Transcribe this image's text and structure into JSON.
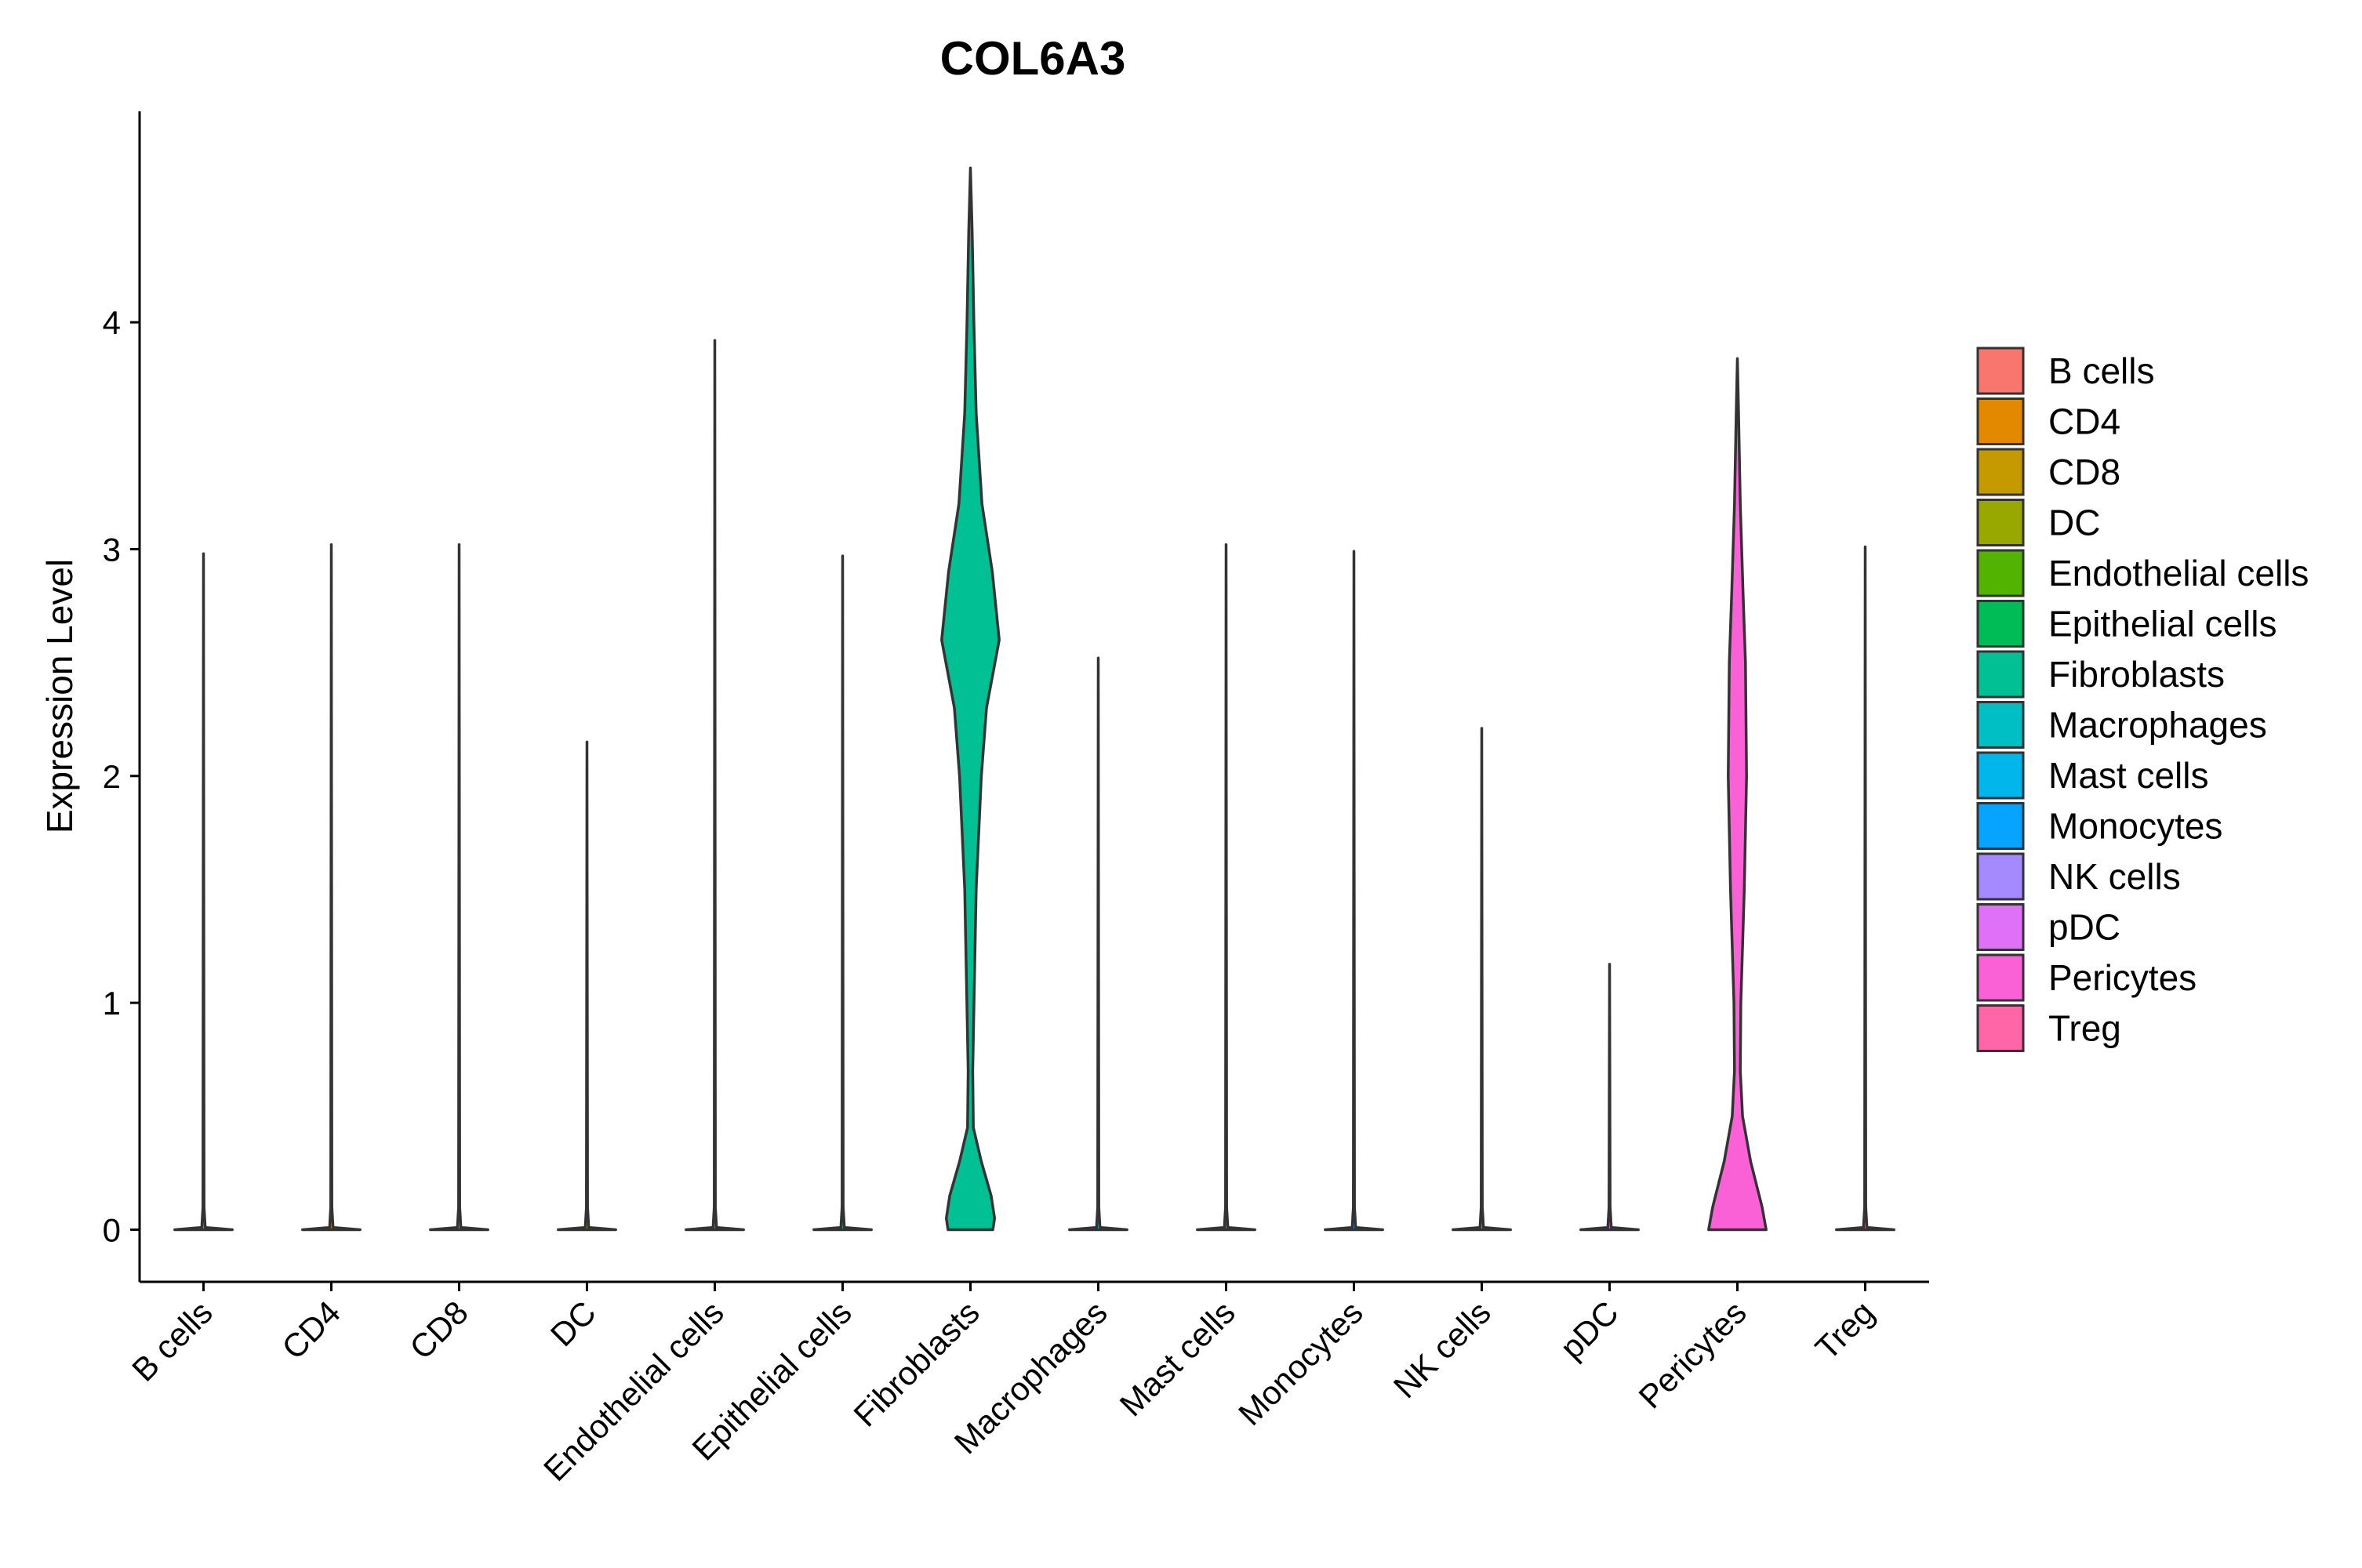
{
  "chart_data": {
    "type": "violin",
    "title": "COL6A3",
    "xlabel": "",
    "ylabel": "Expression Level",
    "ylim": [
      -0.23,
      4.93
    ],
    "yticks": [
      0,
      1,
      2,
      3,
      4
    ],
    "grid": false,
    "legend_position": "right",
    "categories": [
      "B cells",
      "CD4",
      "CD8",
      "DC",
      "Endothelial cells",
      "Epithelial cells",
      "Fibroblasts",
      "Macrophages",
      "Mast cells",
      "Monocytes",
      "NK cells",
      "pDC",
      "Pericytes",
      "Treg"
    ],
    "colors": [
      "#F8766D",
      "#E38900",
      "#C49A00",
      "#99A800",
      "#53B400",
      "#00BC56",
      "#00C094",
      "#00BFC4",
      "#00B6EB",
      "#06A4FF",
      "#A58AFF",
      "#DF70F8",
      "#FB61D7",
      "#FF66A8"
    ],
    "series": [
      {
        "name": "B cells",
        "max": 2.98,
        "profile": [
          [
            0,
            0.5
          ],
          [
            0.01,
            0.03
          ],
          [
            0.1,
            0.01
          ],
          [
            2.98,
            0
          ]
        ]
      },
      {
        "name": "CD4",
        "max": 3.02,
        "profile": [
          [
            0,
            0.5
          ],
          [
            0.01,
            0.03
          ],
          [
            0.1,
            0.01
          ],
          [
            3.02,
            0
          ]
        ]
      },
      {
        "name": "CD8",
        "max": 3.02,
        "profile": [
          [
            0,
            0.5
          ],
          [
            0.01,
            0.03
          ],
          [
            0.1,
            0.01
          ],
          [
            3.02,
            0
          ]
        ]
      },
      {
        "name": "DC",
        "max": 2.15,
        "profile": [
          [
            0,
            0.5
          ],
          [
            0.01,
            0.03
          ],
          [
            0.1,
            0.01
          ],
          [
            2.15,
            0
          ]
        ]
      },
      {
        "name": "Endothelial cells",
        "max": 3.92,
        "profile": [
          [
            0,
            0.5
          ],
          [
            0.01,
            0.03
          ],
          [
            0.1,
            0.01
          ],
          [
            3.92,
            0
          ]
        ]
      },
      {
        "name": "Epithelial cells",
        "max": 2.97,
        "profile": [
          [
            0,
            0.5
          ],
          [
            0.01,
            0.03
          ],
          [
            0.1,
            0.01
          ],
          [
            2.97,
            0
          ]
        ]
      },
      {
        "name": "Fibroblasts",
        "max": 4.68,
        "profile": [
          [
            0,
            0.39
          ],
          [
            0.05,
            0.42
          ],
          [
            0.15,
            0.36
          ],
          [
            0.3,
            0.19
          ],
          [
            0.45,
            0.05
          ],
          [
            0.7,
            0.04
          ],
          [
            1.5,
            0.1
          ],
          [
            2.0,
            0.19
          ],
          [
            2.3,
            0.28
          ],
          [
            2.6,
            0.5
          ],
          [
            2.9,
            0.38
          ],
          [
            3.2,
            0.2
          ],
          [
            3.6,
            0.1
          ],
          [
            4.0,
            0.06
          ],
          [
            4.4,
            0.03
          ],
          [
            4.68,
            0
          ]
        ]
      },
      {
        "name": "Macrophages",
        "max": 2.52,
        "profile": [
          [
            0,
            0.5
          ],
          [
            0.01,
            0.03
          ],
          [
            0.1,
            0.01
          ],
          [
            2.52,
            0
          ]
        ]
      },
      {
        "name": "Mast cells",
        "max": 3.02,
        "profile": [
          [
            0,
            0.5
          ],
          [
            0.01,
            0.03
          ],
          [
            0.1,
            0.01
          ],
          [
            3.02,
            0
          ]
        ]
      },
      {
        "name": "Monocytes",
        "max": 2.99,
        "profile": [
          [
            0,
            0.5
          ],
          [
            0.01,
            0.03
          ],
          [
            0.1,
            0.01
          ],
          [
            2.99,
            0
          ]
        ]
      },
      {
        "name": "NK cells",
        "max": 2.21,
        "profile": [
          [
            0,
            0.5
          ],
          [
            0.01,
            0.03
          ],
          [
            0.1,
            0.01
          ],
          [
            2.21,
            0
          ]
        ]
      },
      {
        "name": "pDC",
        "max": 1.17,
        "profile": [
          [
            0,
            0.5
          ],
          [
            0.01,
            0.03
          ],
          [
            0.1,
            0.01
          ],
          [
            1.17,
            0
          ]
        ]
      },
      {
        "name": "Pericytes",
        "max": 3.84,
        "profile": [
          [
            0,
            0.5
          ],
          [
            0.1,
            0.43
          ],
          [
            0.3,
            0.23
          ],
          [
            0.5,
            0.09
          ],
          [
            0.7,
            0.05
          ],
          [
            1.0,
            0.06
          ],
          [
            1.5,
            0.12
          ],
          [
            2.0,
            0.16
          ],
          [
            2.5,
            0.14
          ],
          [
            2.8,
            0.1
          ],
          [
            3.2,
            0.05
          ],
          [
            3.6,
            0.02
          ],
          [
            3.84,
            0
          ]
        ]
      },
      {
        "name": "Treg",
        "max": 3.01,
        "profile": [
          [
            0,
            0.5
          ],
          [
            0.01,
            0.03
          ],
          [
            0.1,
            0.01
          ],
          [
            3.01,
            0
          ]
        ]
      }
    ]
  }
}
